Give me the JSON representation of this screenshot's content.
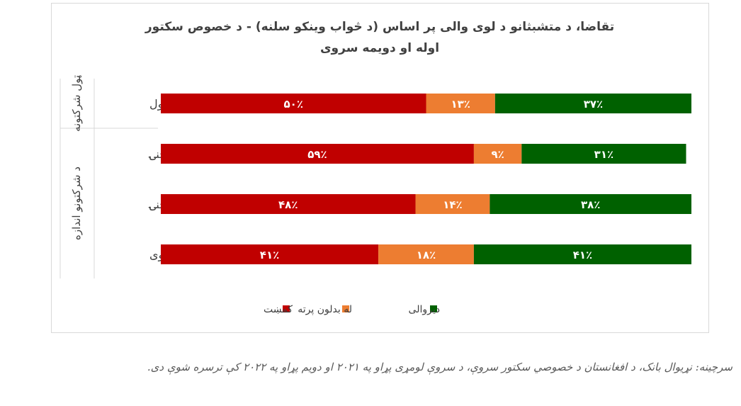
{
  "chart_data": {
    "type": "bar",
    "orientation": "horizontal",
    "stacked": true,
    "percent_stacked": true,
    "title_lines": [
      "تقاضا، د متشبثانو د لوی والی پر اساس (د څواب وینکو سلنه) - د خصوص سکتور",
      "اوله او دویمه سروی"
    ],
    "categories": [
      "ټول",
      "کوچنۍ",
      "منځنۍ",
      "لوی"
    ],
    "category_groups": [
      {
        "label": "ټول شرکتونه",
        "categories": [
          "ټول"
        ]
      },
      {
        "label": "د شرکتونو اندازه",
        "categories": [
          "کوچنۍ",
          "منځنۍ",
          "لوی"
        ]
      }
    ],
    "series": [
      {
        "name": "کمښت",
        "color": "#c00000",
        "values": [
          50,
          59,
          48,
          41
        ],
        "labels": [
          "۵۰٪",
          "۵۹٪",
          "۴۸٪",
          "۴۱٪"
        ]
      },
      {
        "name": "له بدلون پرته",
        "color": "#ed7d31",
        "values": [
          13,
          9,
          14,
          18
        ],
        "labels": [
          "۱۳٪",
          "۹٪",
          "۱۴٪",
          "۱۸٪"
        ]
      },
      {
        "name": "دیروالی",
        "color": "#006100",
        "values": [
          37,
          31,
          38,
          41
        ],
        "labels": [
          "۳۷٪",
          "۳۱٪",
          "۳۸٪",
          "۴۱٪"
        ]
      }
    ],
    "xlim": [
      0,
      100
    ],
    "legend_position": "bottom",
    "grid": false
  },
  "source_note": "سرچینه: نړیوال بانک، د افغانستان د خصوصي سکتور سروې، د سروې لومړی پړاو په ۲۰۲۱ او دویم پړاو په ۲۰۲۲ کې ترسره شوې دی."
}
